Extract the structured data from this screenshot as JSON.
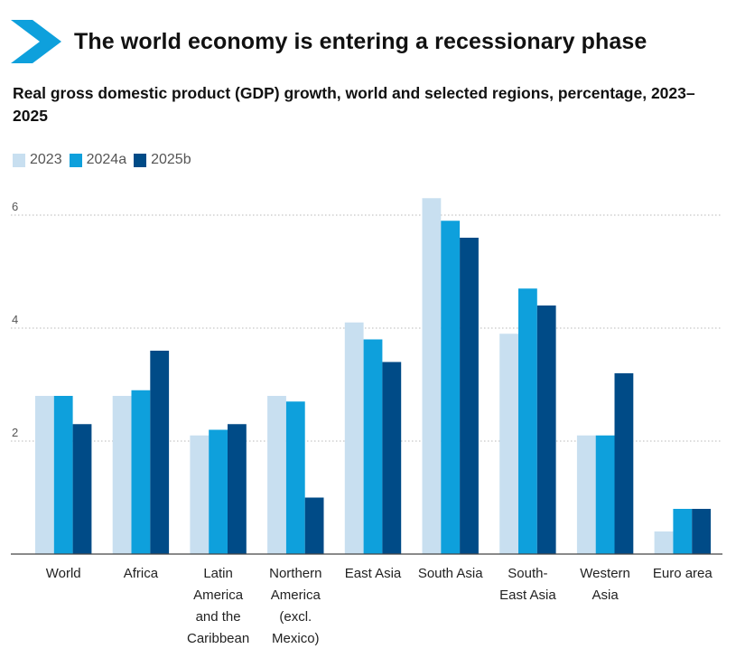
{
  "header": {
    "title": "The world economy is entering a recessionary phase",
    "subtitle": "Real gross domestic product (GDP) growth, world and selected regions, percentage, 2023–2025",
    "accent_color": "#0ea0dc"
  },
  "chart_data": {
    "type": "bar",
    "title": "The world economy is entering a recessionary phase",
    "subtitle": "Real gross domestic product (GDP) growth, world and selected regions, percentage, 2023–2025",
    "categories": [
      "World",
      "Africa",
      "Latin America and the Caribbean",
      "Northern America (excl. Mexico)",
      "East Asia",
      "South Asia",
      "South-East Asia",
      "Western Asia",
      "Euro area"
    ],
    "category_label_lines": [
      [
        "World"
      ],
      [
        "Africa"
      ],
      [
        "Latin",
        "America",
        "and the",
        "Caribbean"
      ],
      [
        "Northern",
        "America",
        "(excl.",
        "Mexico)"
      ],
      [
        "East Asia"
      ],
      [
        "South Asia"
      ],
      [
        "South-",
        "East Asia"
      ],
      [
        "Western",
        "Asia"
      ],
      [
        "Euro area"
      ]
    ],
    "series": [
      {
        "name": "2023",
        "color": "#c8dff0",
        "values": [
          2.8,
          2.8,
          2.1,
          2.8,
          4.1,
          6.3,
          3.9,
          2.1,
          0.4
        ]
      },
      {
        "name": "2024a",
        "color": "#0ea0dc",
        "values": [
          2.8,
          2.9,
          2.2,
          2.7,
          3.8,
          5.9,
          4.7,
          2.1,
          0.8
        ]
      },
      {
        "name": "2025b",
        "color": "#004b87",
        "values": [
          2.3,
          3.6,
          2.3,
          1.0,
          3.4,
          5.6,
          4.4,
          3.2,
          0.8
        ]
      }
    ],
    "ylim": [
      0,
      6.5
    ],
    "yticks": [
      2,
      4,
      6
    ],
    "xlabel": "",
    "ylabel": "",
    "grid": true,
    "legend_position": "top-left"
  }
}
